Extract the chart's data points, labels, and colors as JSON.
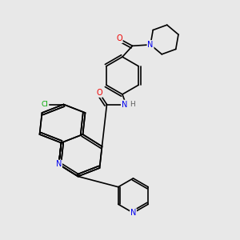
{
  "background_color": "#e8e8e8",
  "atom_colors": {
    "C": "#000000",
    "N": "#0000ee",
    "O": "#ee0000",
    "Cl": "#00aa00",
    "H": "#606060"
  },
  "figsize": [
    3.0,
    3.0
  ],
  "dpi": 100,
  "lw": 1.2,
  "fontsize": 7.0
}
